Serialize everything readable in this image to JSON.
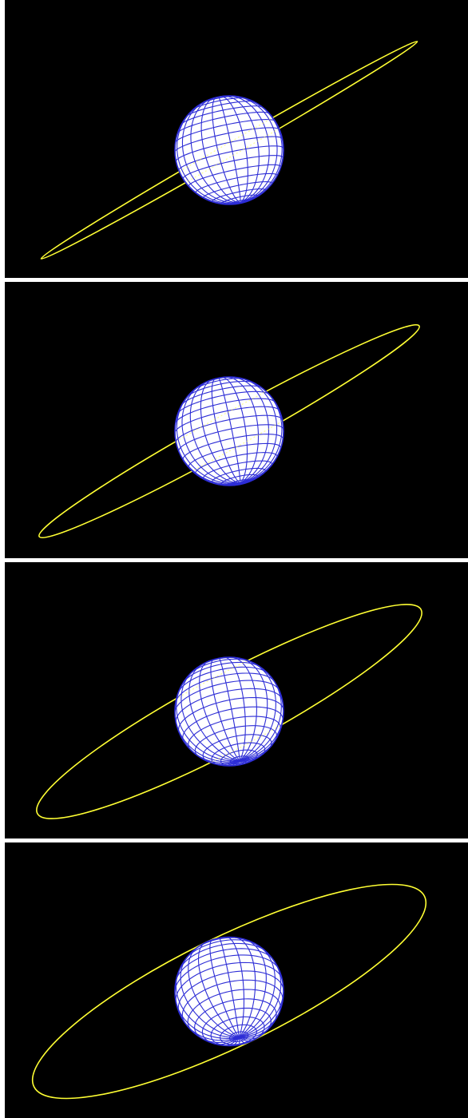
{
  "figure": {
    "panel_count": 4,
    "background_color": "#000000",
    "separator_color": "#ffffff",
    "sphere": {
      "fill_color": "#ffffff",
      "grid_color": "#2d2dd6",
      "meridian_count": 24,
      "parallel_count": 18
    },
    "orbit": {
      "color": "#ffff33"
    },
    "panels": [
      {
        "id": "panel-1",
        "orbit_tilt_deg": -30,
        "orbit_flattening": 0.03,
        "sphere_pole_tilt_deg": 8
      },
      {
        "id": "panel-2",
        "orbit_tilt_deg": -29,
        "orbit_flattening": 0.08,
        "sphere_pole_tilt_deg": 12
      },
      {
        "id": "panel-3",
        "orbit_tilt_deg": -28,
        "orbit_flattening": 0.17,
        "sphere_pole_tilt_deg": 22
      },
      {
        "id": "panel-4",
        "orbit_tilt_deg": -26,
        "orbit_flattening": 0.25,
        "sphere_pole_tilt_deg": 30
      }
    ]
  }
}
